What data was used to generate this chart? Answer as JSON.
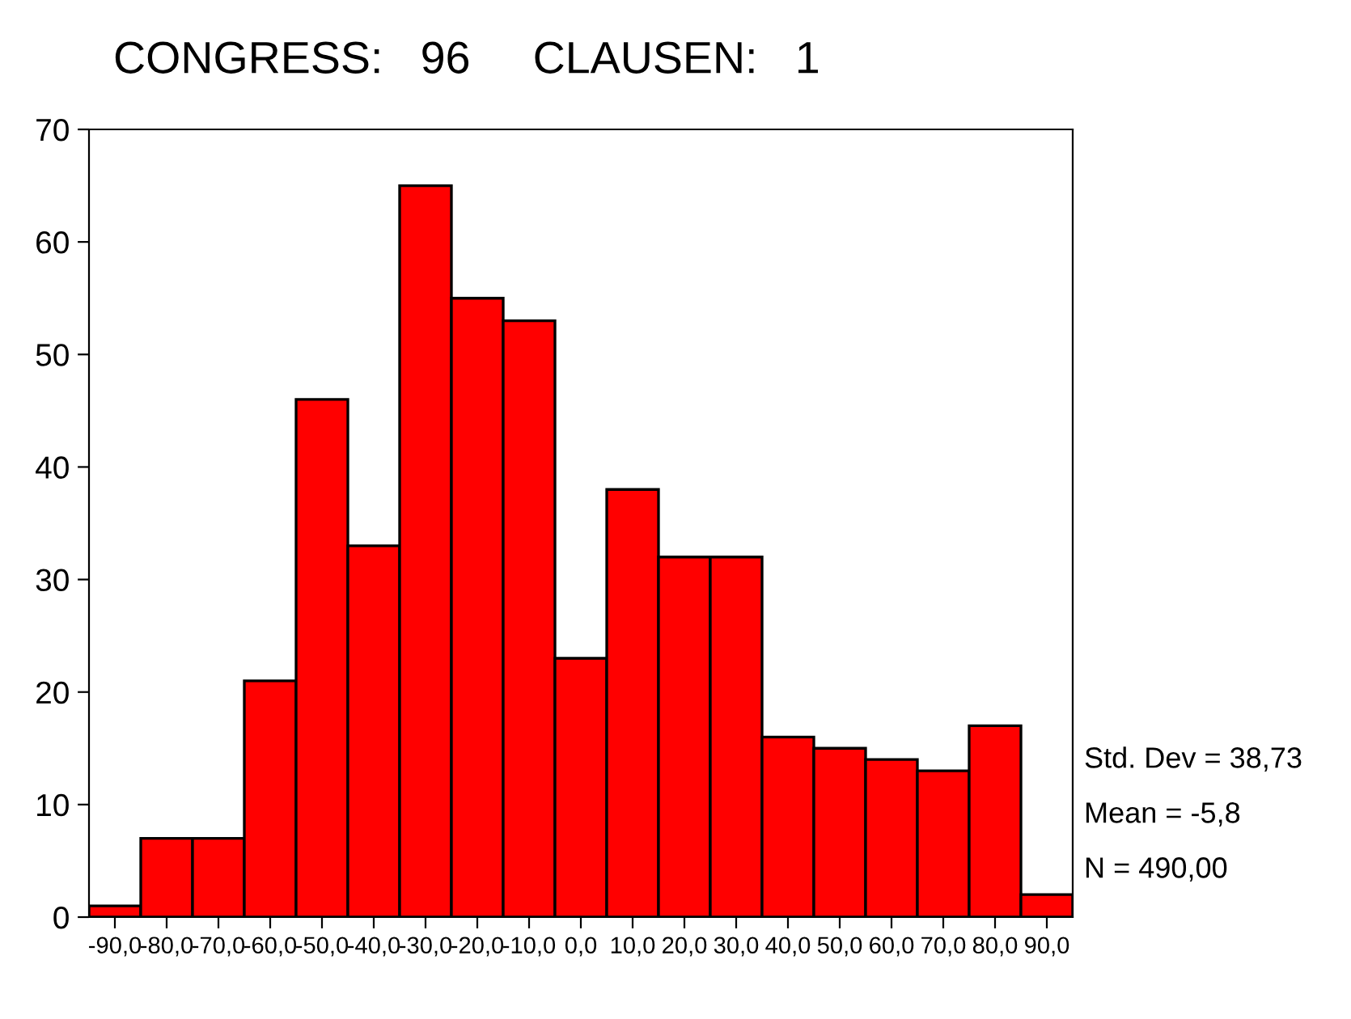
{
  "chart_data": {
    "type": "histogram",
    "title": "CONGRESS:   96     CLAUSEN:   1",
    "bins": [
      -95,
      -85,
      -75,
      -65,
      -55,
      -45,
      -35,
      -25,
      -15,
      -5,
      5,
      15,
      25,
      35,
      45,
      55,
      65,
      75,
      85,
      95
    ],
    "values": [
      1,
      7,
      7,
      21,
      46,
      33,
      65,
      55,
      53,
      23,
      38,
      32,
      32,
      16,
      15,
      14,
      13,
      17,
      2
    ],
    "color": "#ff0000",
    "xlim": [
      -95,
      95
    ],
    "xticks": [
      {
        "value": -90,
        "label": "-90,0"
      },
      {
        "value": -80,
        "label": "-80,0"
      },
      {
        "value": -70,
        "label": "-70,0"
      },
      {
        "value": -60,
        "label": "-60,0"
      },
      {
        "value": -50,
        "label": "-50,0"
      },
      {
        "value": -40,
        "label": "-40,0"
      },
      {
        "value": -30,
        "label": "-30,0"
      },
      {
        "value": -20,
        "label": "-20,0"
      },
      {
        "value": -10,
        "label": "-10,0"
      },
      {
        "value": 0,
        "label": "0,0"
      },
      {
        "value": 10,
        "label": "10,0"
      },
      {
        "value": 20,
        "label": "20,0"
      },
      {
        "value": 30,
        "label": "30,0"
      },
      {
        "value": 40,
        "label": "40,0"
      },
      {
        "value": 50,
        "label": "50,0"
      },
      {
        "value": 60,
        "label": "60,0"
      },
      {
        "value": 70,
        "label": "70,0"
      },
      {
        "value": 80,
        "label": "80,0"
      },
      {
        "value": 90,
        "label": "90,0"
      }
    ],
    "ylim": [
      0,
      70
    ],
    "yticks": [
      0,
      10,
      20,
      30,
      40,
      50,
      60,
      70
    ],
    "annotations": [
      "Std. Dev = 38,73",
      "Mean = -5,8",
      "N = 490,00"
    ]
  }
}
